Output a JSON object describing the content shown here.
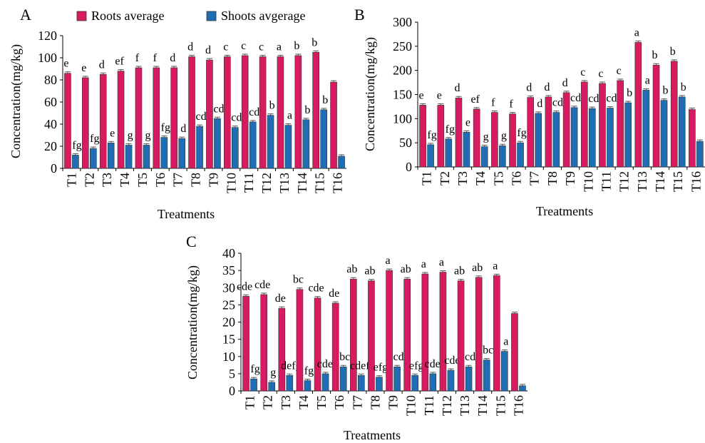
{
  "colors": {
    "roots": "#d81b60",
    "shoots": "#1f6db5",
    "error_bar": "#555555"
  },
  "legend": [
    {
      "key": "roots",
      "label": "Roots average"
    },
    {
      "key": "shoots",
      "label": "Shoots avgerage"
    }
  ],
  "chart_data": [
    {
      "type": "bar",
      "panel_label": "A",
      "xlabel": "Treatments",
      "ylabel": "Concentration(mg/kg)",
      "ylim": [
        0,
        120
      ],
      "yticks": [
        0,
        20,
        40,
        60,
        80,
        100,
        120
      ],
      "categories": [
        "T1",
        "T2",
        "T3",
        "T4",
        "T5",
        "T6",
        "T7",
        "T8",
        "T9",
        "T10",
        "T11",
        "T12",
        "T13",
        "T14",
        "T15",
        "T16"
      ],
      "series": [
        {
          "name": "Roots average",
          "color_key": "roots",
          "values": [
            86,
            82,
            85,
            88,
            91,
            91,
            91,
            101,
            98,
            101,
            102,
            101,
            101,
            102,
            105,
            78
          ],
          "labels": [
            "e",
            "e",
            "d",
            "ef",
            "f",
            "f",
            "d",
            "d",
            "d",
            "c",
            "c",
            "c",
            "a",
            "b",
            "b",
            ""
          ]
        },
        {
          "name": "Shoots avgerage",
          "color_key": "shoots",
          "values": [
            12,
            18,
            23,
            21,
            21,
            28,
            27,
            38,
            45,
            37,
            42,
            48,
            39,
            44,
            53,
            11
          ],
          "labels": [
            "fg",
            "fg",
            "e",
            "g",
            "g",
            "fg",
            "d",
            "cd",
            "cd",
            "cd",
            "cd",
            "b",
            "a",
            "b",
            "b",
            ""
          ]
        }
      ]
    },
    {
      "type": "bar",
      "panel_label": "B",
      "xlabel": "Treatments",
      "ylabel": "Concentration(mg/kg)",
      "ylim": [
        0,
        300
      ],
      "yticks": [
        0,
        50,
        100,
        150,
        200,
        250,
        300
      ],
      "categories": [
        "T1",
        "T2",
        "T3",
        "T4",
        "T5",
        "T6",
        "T7",
        "T8",
        "T9",
        "T10",
        "T11",
        "T12",
        "T13",
        "T14",
        "T15",
        "T16"
      ],
      "series": [
        {
          "name": "Roots average",
          "color_key": "roots",
          "values": [
            128,
            128,
            143,
            120,
            113,
            110,
            144,
            145,
            154,
            176,
            173,
            179,
            258,
            211,
            219,
            119
          ],
          "labels": [
            "e",
            "e",
            "d",
            "ef",
            "f",
            "f",
            "d",
            "d",
            "d",
            "c",
            "c",
            "c",
            "a",
            "b",
            "b",
            ""
          ]
        },
        {
          "name": "Shoots avgerage",
          "color_key": "shoots",
          "values": [
            46,
            58,
            72,
            42,
            44,
            50,
            111,
            113,
            123,
            121,
            122,
            133,
            159,
            138,
            145,
            53
          ],
          "labels": [
            "fg",
            "fg",
            "e",
            "g",
            "g",
            "fg",
            "d",
            "cd",
            "cd",
            "cd",
            "cd",
            "b",
            "a",
            "b",
            "b",
            ""
          ]
        }
      ]
    },
    {
      "type": "bar",
      "panel_label": "C",
      "xlabel": "Treatments",
      "ylabel": "Concentration(mg/kg)",
      "ylim": [
        0,
        40
      ],
      "yticks": [
        0,
        5,
        10,
        15,
        20,
        25,
        30,
        35,
        40
      ],
      "categories": [
        "T1",
        "T2",
        "T3",
        "T4",
        "T5",
        "T6",
        "T7",
        "T8",
        "T9",
        "T10",
        "T11",
        "T12",
        "T13",
        "T14",
        "T15",
        "T16"
      ],
      "series": [
        {
          "name": "Roots average",
          "color_key": "roots",
          "values": [
            27.5,
            28,
            24,
            29.5,
            27,
            25.5,
            32.5,
            32,
            35,
            32.5,
            34,
            34.5,
            32,
            33,
            33.5,
            22.5
          ],
          "labels": [
            "cde",
            "cde",
            "de",
            "bc",
            "cde",
            "de",
            "ab",
            "ab",
            "a",
            "ab",
            "a",
            "a",
            "ab",
            "ab",
            "a",
            ""
          ]
        },
        {
          "name": "Shoots avgerage",
          "color_key": "shoots",
          "values": [
            3.5,
            2.5,
            4.5,
            3,
            5,
            7,
            4.5,
            4,
            7,
            4.5,
            5,
            6,
            7,
            9,
            11.5,
            1.5
          ],
          "labels": [
            "fg",
            "g",
            "defg",
            "fg",
            "cdef",
            "bc",
            "cdefg",
            "efg",
            "cd",
            "efg",
            "cdef",
            "cde",
            "cd",
            "bc",
            "a",
            ""
          ]
        }
      ]
    }
  ]
}
